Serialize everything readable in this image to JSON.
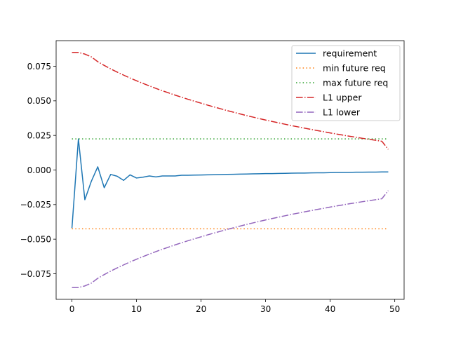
{
  "chart_data": {
    "type": "line",
    "title": "",
    "xlabel": "",
    "ylabel": "",
    "xlim": [
      -2.45,
      51.45
    ],
    "ylim": [
      -0.0935,
      0.0935
    ],
    "xticks": [
      0,
      10,
      20,
      30,
      40,
      50
    ],
    "xtick_labels": [
      "0",
      "10",
      "20",
      "30",
      "40",
      "50"
    ],
    "yticks": [
      -0.075,
      -0.05,
      -0.025,
      0.0,
      0.025,
      0.05,
      0.075
    ],
    "ytick_labels": [
      "−0.075",
      "−0.050",
      "−0.025",
      "0.000",
      "0.025",
      "0.050",
      "0.075"
    ],
    "grid": false,
    "legend_position": "upper right",
    "series": [
      {
        "name": "requirement",
        "color": "#1f77b4",
        "style": "solid",
        "x": [
          0,
          1,
          2,
          3,
          4,
          5,
          6,
          7,
          8,
          9,
          10,
          11,
          12,
          13,
          14,
          15,
          16,
          17,
          18,
          19,
          20,
          21,
          22,
          23,
          24,
          25,
          26,
          27,
          28,
          29,
          30,
          31,
          32,
          33,
          34,
          35,
          36,
          37,
          38,
          39,
          40,
          41,
          42,
          43,
          44,
          45,
          46,
          47,
          48,
          49
        ],
        "y": [
          -0.042,
          0.0225,
          -0.0215,
          -0.0082,
          0.0023,
          -0.0128,
          -0.0032,
          -0.0045,
          -0.0075,
          -0.0035,
          -0.0058,
          -0.0052,
          -0.0043,
          -0.005,
          -0.0043,
          -0.0043,
          -0.0043,
          -0.0038,
          -0.0038,
          -0.0037,
          -0.0036,
          -0.0035,
          -0.0034,
          -0.0033,
          -0.0032,
          -0.0031,
          -0.003,
          -0.0029,
          -0.0028,
          -0.0027,
          -0.0026,
          -0.0026,
          -0.0025,
          -0.0024,
          -0.0023,
          -0.0022,
          -0.0022,
          -0.0021,
          -0.002,
          -0.002,
          -0.0019,
          -0.0018,
          -0.0018,
          -0.0017,
          -0.0016,
          -0.0016,
          -0.0015,
          -0.0015,
          -0.0014,
          -0.0014
        ]
      },
      {
        "name": "min future req",
        "color": "#ff7f0e",
        "style": "dotted",
        "x": [
          0,
          49
        ],
        "y": [
          -0.0425,
          -0.0425
        ]
      },
      {
        "name": "max future req",
        "color": "#2ca02c",
        "style": "dotted",
        "x": [
          0,
          49
        ],
        "y": [
          0.0225,
          0.0225
        ]
      },
      {
        "name": "L1 upper",
        "color": "#d62728",
        "style": "dashdot",
        "x": [
          0,
          1,
          2,
          3,
          4,
          5,
          6,
          7,
          8,
          9,
          10,
          11,
          12,
          13,
          14,
          15,
          16,
          17,
          18,
          19,
          20,
          21,
          22,
          23,
          24,
          25,
          26,
          27,
          28,
          29,
          30,
          31,
          32,
          33,
          34,
          35,
          36,
          37,
          38,
          39,
          40,
          41,
          42,
          43,
          44,
          45,
          46,
          47,
          48,
          49
        ],
        "y": [
          0.085,
          0.085,
          0.0838,
          0.0818,
          0.0783,
          0.0756,
          0.0731,
          0.0708,
          0.0686,
          0.0665,
          0.0645,
          0.0626,
          0.0608,
          0.059,
          0.0573,
          0.0557,
          0.0541,
          0.0526,
          0.0511,
          0.0497,
          0.0483,
          0.0469,
          0.0456,
          0.0443,
          0.043,
          0.0418,
          0.0406,
          0.0394,
          0.0383,
          0.0372,
          0.0361,
          0.0351,
          0.0341,
          0.0331,
          0.0321,
          0.0312,
          0.0303,
          0.0294,
          0.0285,
          0.0277,
          0.0268,
          0.026,
          0.0252,
          0.0244,
          0.0237,
          0.0229,
          0.0222,
          0.0215,
          0.0208,
          0.0149
        ]
      },
      {
        "name": "L1 lower",
        "color": "#9467bd",
        "style": "dashdot",
        "x": [
          0,
          1,
          2,
          3,
          4,
          5,
          6,
          7,
          8,
          9,
          10,
          11,
          12,
          13,
          14,
          15,
          16,
          17,
          18,
          19,
          20,
          21,
          22,
          23,
          24,
          25,
          26,
          27,
          28,
          29,
          30,
          31,
          32,
          33,
          34,
          35,
          36,
          37,
          38,
          39,
          40,
          41,
          42,
          43,
          44,
          45,
          46,
          47,
          48,
          49
        ],
        "y": [
          -0.085,
          -0.085,
          -0.0838,
          -0.0818,
          -0.0783,
          -0.0756,
          -0.0731,
          -0.0708,
          -0.0686,
          -0.0665,
          -0.0645,
          -0.0626,
          -0.0608,
          -0.059,
          -0.0573,
          -0.0557,
          -0.0541,
          -0.0526,
          -0.0511,
          -0.0497,
          -0.0483,
          -0.0469,
          -0.0456,
          -0.0443,
          -0.043,
          -0.0418,
          -0.0406,
          -0.0394,
          -0.0383,
          -0.0372,
          -0.0361,
          -0.0351,
          -0.0341,
          -0.0331,
          -0.0321,
          -0.0312,
          -0.0303,
          -0.0294,
          -0.0285,
          -0.0277,
          -0.0268,
          -0.026,
          -0.0252,
          -0.0244,
          -0.0237,
          -0.0229,
          -0.0222,
          -0.0215,
          -0.0208,
          -0.0149
        ]
      }
    ]
  }
}
